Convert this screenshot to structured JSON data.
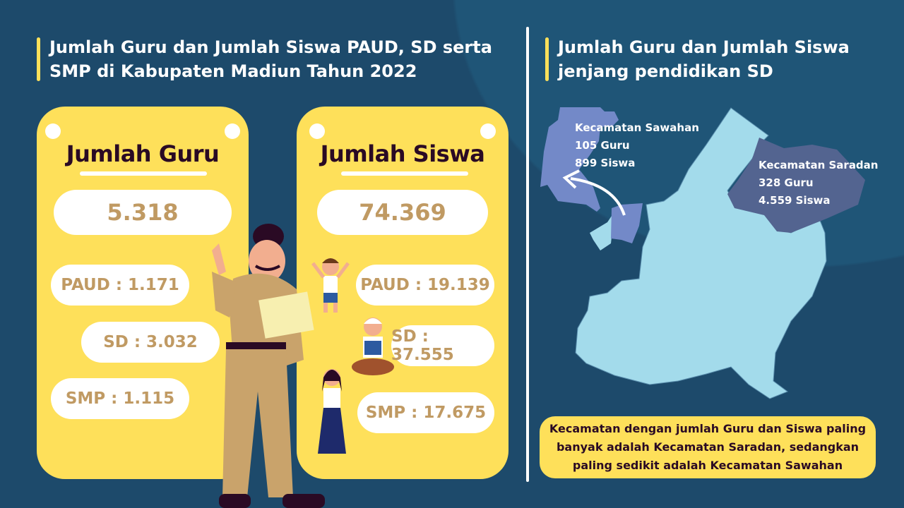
{
  "left": {
    "title_line1": "Jumlah Guru dan Jumlah Siswa PAUD, SD serta",
    "title_line2": "SMP di Kabupaten Madiun Tahun 2022",
    "guru": {
      "heading": "Jumlah Guru",
      "total": "5.318",
      "paud": "PAUD : 1.171",
      "sd": "SD : 3.032",
      "smp": "SMP : 1.115"
    },
    "siswa": {
      "heading": "Jumlah Siswa",
      "total": "74.369",
      "paud": "PAUD : 19.139",
      "sd": "SD : 37.555",
      "smp": "SMP : 17.675"
    }
  },
  "right": {
    "title_line1": "Jumlah Guru dan Jumlah Siswa",
    "title_line2": "jenjang pendidikan SD",
    "sawahan": {
      "name": "Kecamatan Sawahan",
      "guru": "105 Guru",
      "siswa": "899 Siswa"
    },
    "saradan": {
      "name": "Kecamatan Saradan",
      "guru": "328 Guru",
      "siswa": "4.559 Siswa"
    },
    "note": "Kecamatan dengan jumlah Guru dan Siswa paling banyak adalah Kecamatan Saradan, sedangkan paling sedikit adalah Kecamatan Sawahan"
  },
  "colors": {
    "background": "#1d4a6b",
    "card": "#fee05a",
    "number": "#c09a63",
    "map": "#a3dbeb",
    "sawahan": "#7389c8",
    "saradan": "#536490"
  }
}
